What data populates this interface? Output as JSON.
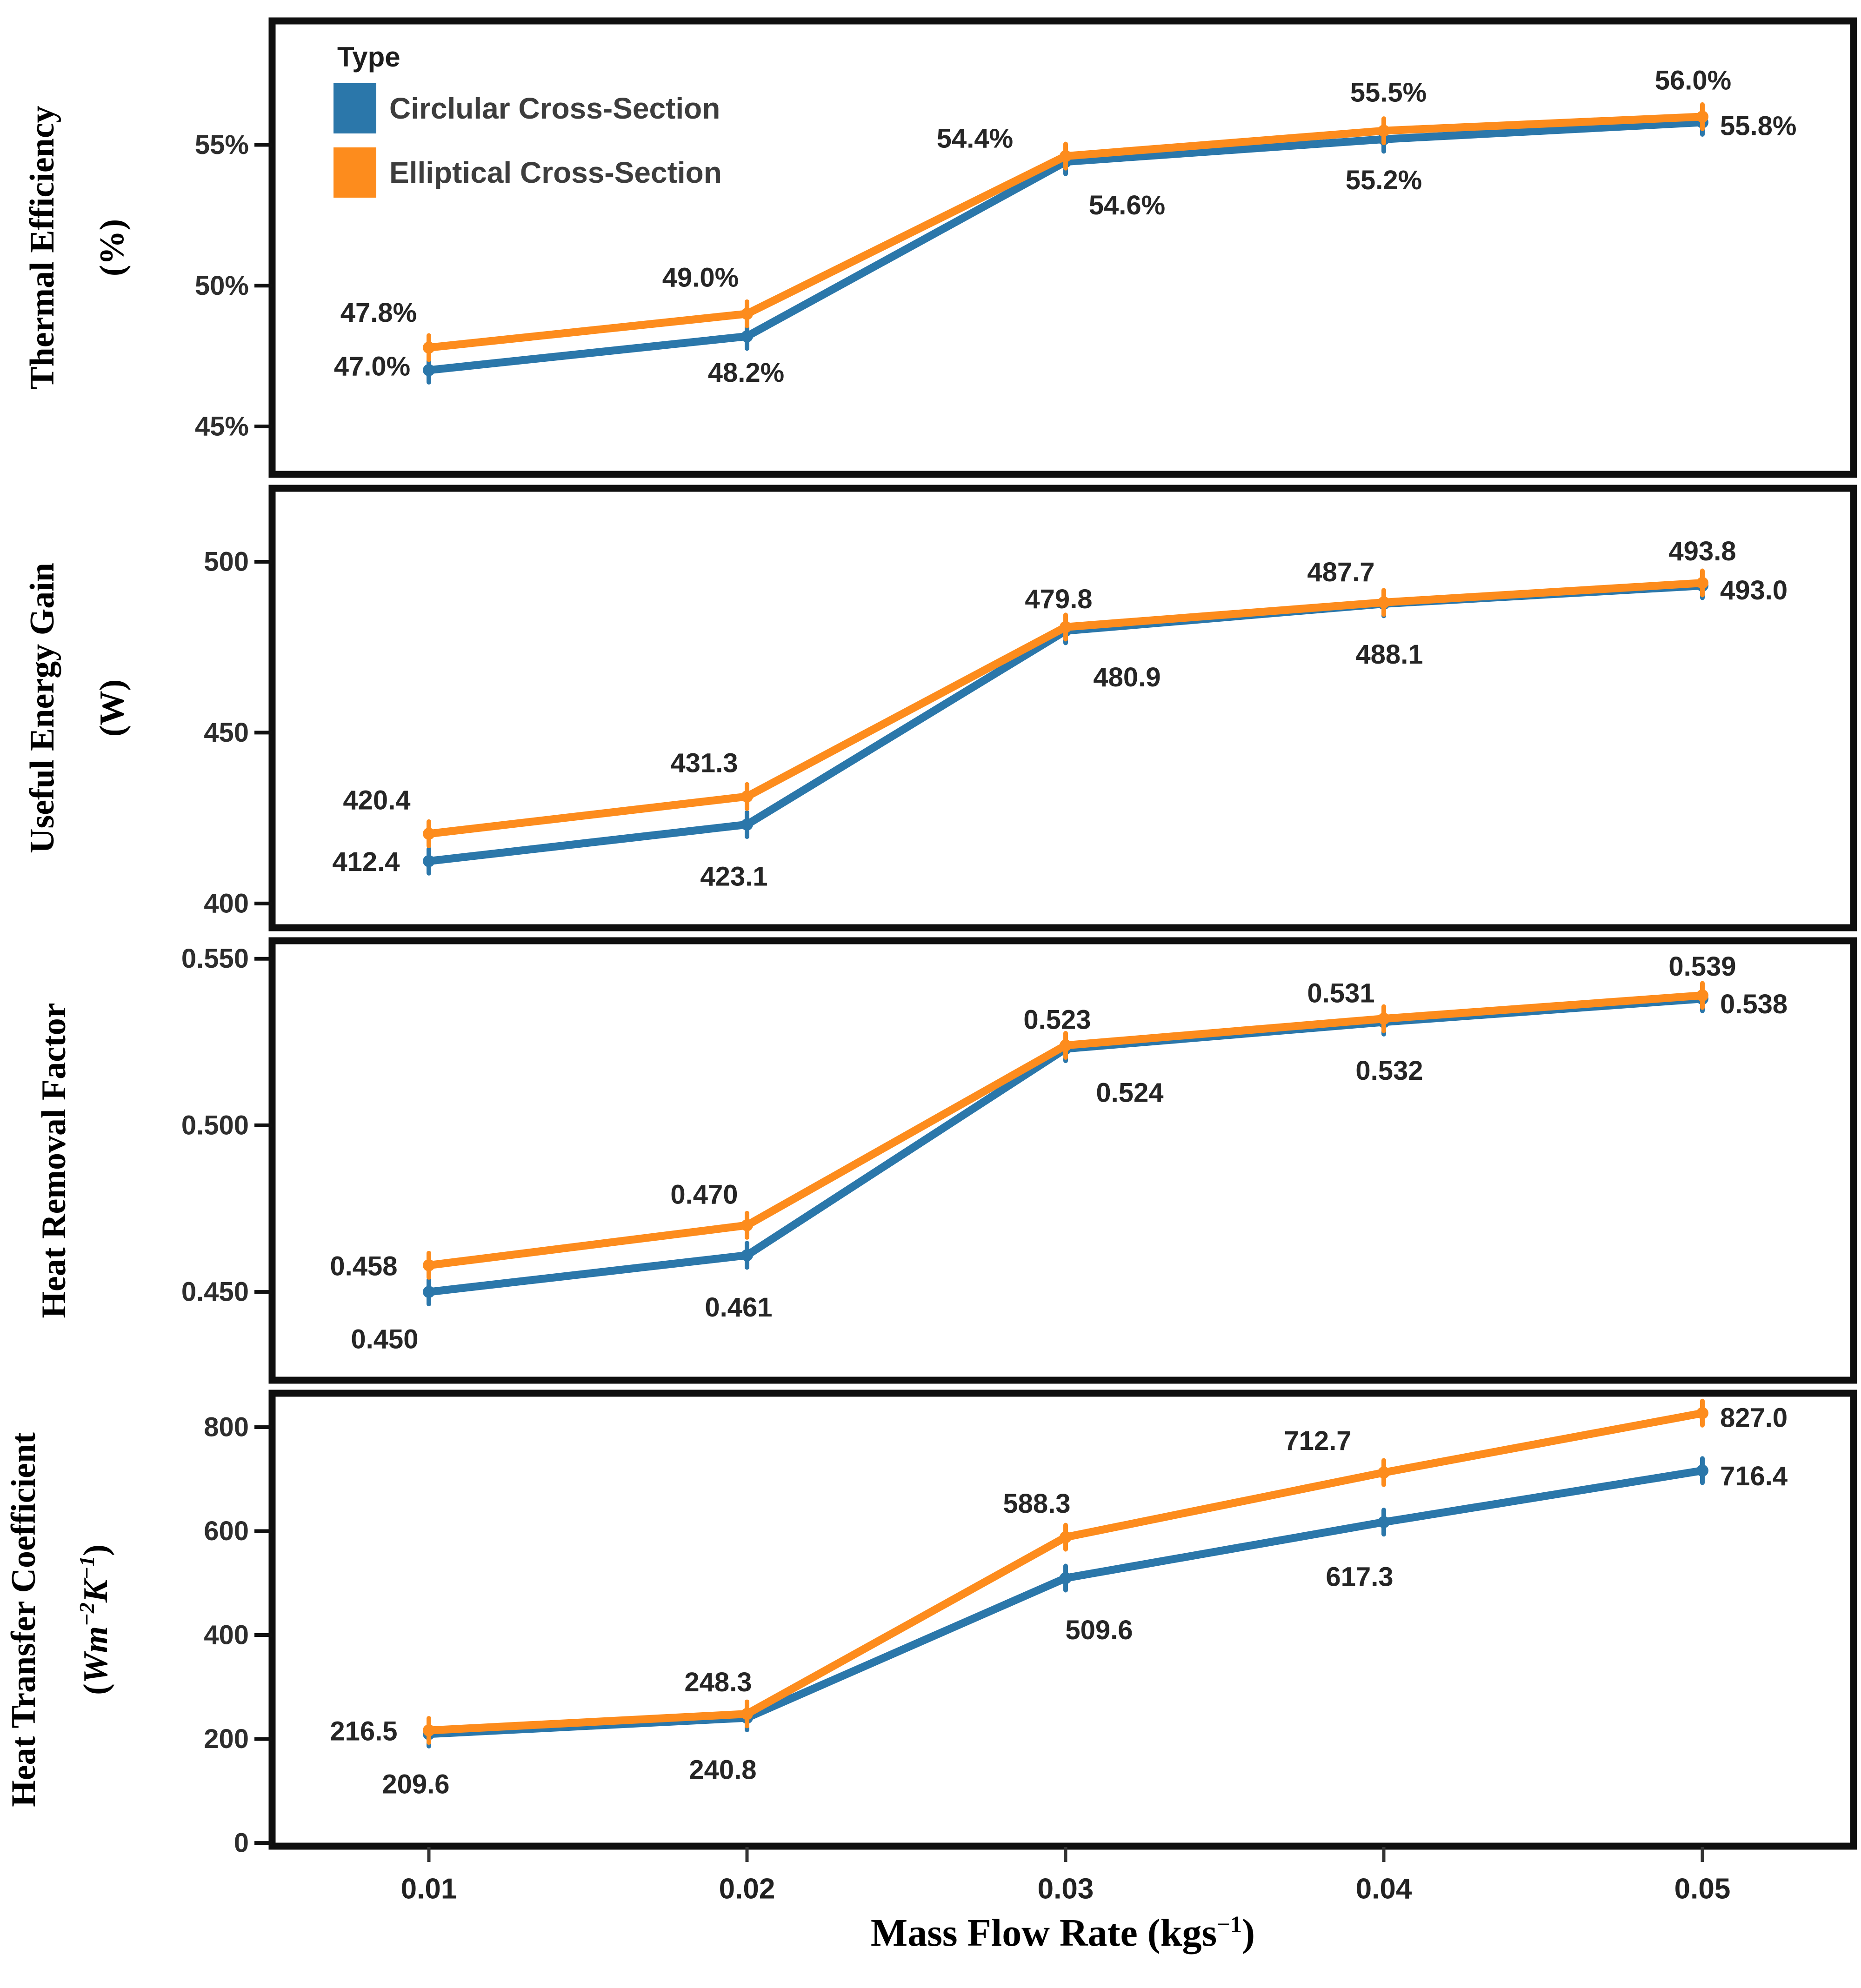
{
  "chart_data": {
    "type": "line",
    "title": "",
    "grid": false,
    "x_axis": {
      "title_segments": [
        {
          "t": "Mass Flow Rate (kgs"
        },
        {
          "t": "−1",
          "sup": true
        },
        {
          "t": ")"
        }
      ],
      "categories": [
        "0.01",
        "0.02",
        "0.03",
        "0.04",
        "0.05"
      ]
    },
    "legend": {
      "title": "Type",
      "position": "top-left-inside",
      "items": [
        {
          "key": "circular",
          "label": "Circlular Cross-Section",
          "color": "#2b77aa"
        },
        {
          "key": "elliptical",
          "label": "Elliptical Cross-Section",
          "color": "#fd8c1d"
        }
      ]
    },
    "panels": [
      {
        "id": "thermal-efficiency",
        "ylabel": [
          {
            "segments": [
              {
                "t": "Thermal Efficiency"
              }
            ]
          },
          {
            "segments": [
              {
                "t": "(%)"
              }
            ]
          }
        ],
        "ylim": [
          43.3,
          59.4
        ],
        "yticks": [
          {
            "v": 45,
            "label": "45%"
          },
          {
            "v": 50,
            "label": "50%"
          },
          {
            "v": 55,
            "label": "55%"
          }
        ],
        "series": [
          {
            "key": "circular",
            "name": "Circlular Cross-Section",
            "color": "#2b77aa",
            "values": [
              47.0,
              48.2,
              54.4,
              55.2,
              55.8
            ],
            "labels": [
              "47.0%",
              "48.2%",
              "54.4%",
              "55.2%",
              "55.8%"
            ],
            "label_offsets": [
              [
                -122,
                -8,
                "middle"
              ],
              [
                -2,
                78,
                "middle"
              ],
              [
                -195,
                -50,
                "middle"
              ],
              [
                0,
                88,
                "middle"
              ],
              [
                38,
                8,
                "start"
              ]
            ]
          },
          {
            "key": "elliptical",
            "name": "Elliptical Cross-Section",
            "color": "#fd8c1d",
            "values": [
              47.8,
              49.0,
              54.6,
              55.5,
              56.0
            ],
            "labels": [
              "47.8%",
              "49.0%",
              "54.6%",
              "55.5%",
              "56.0%"
            ],
            "label_offsets": [
              [
                -108,
                -75,
                "middle"
              ],
              [
                -100,
                -78,
                "middle"
              ],
              [
                132,
                106,
                "middle"
              ],
              [
                10,
                -82,
                "middle"
              ],
              [
                -20,
                -78,
                "middle"
              ]
            ]
          }
        ]
      },
      {
        "id": "useful-energy-gain",
        "ylabel": [
          {
            "segments": [
              {
                "t": "Useful Energy Gain"
              }
            ]
          },
          {
            "segments": [
              {
                "t": "(W)"
              }
            ]
          }
        ],
        "ylim": [
          392.9,
          521.5
        ],
        "yticks": [
          {
            "v": 400,
            "label": "400"
          },
          {
            "v": 450,
            "label": "450"
          },
          {
            "v": 500,
            "label": "500"
          }
        ],
        "series": [
          {
            "key": "circular",
            "name": "Circlular Cross-Section",
            "color": "#2b77aa",
            "values": [
              412.4,
              423.1,
              479.8,
              487.7,
              493.0
            ],
            "labels": [
              "412.4",
              "423.1",
              "479.8",
              "487.7",
              "493.0"
            ],
            "label_offsets": [
              [
                -135,
                2,
                "middle"
              ],
              [
                -28,
                112,
                "middle"
              ],
              [
                -15,
                -68,
                "middle"
              ],
              [
                -92,
                -68,
                "middle"
              ],
              [
                38,
                10,
                "start"
              ]
            ]
          },
          {
            "key": "elliptical",
            "name": "Elliptical Cross-Section",
            "color": "#fd8c1d",
            "values": [
              420.4,
              431.3,
              480.9,
              488.1,
              493.8
            ],
            "labels": [
              "420.4",
              "431.3",
              "480.9",
              "488.1",
              "493.8"
            ],
            "label_offsets": [
              [
                -112,
                -72,
                "middle"
              ],
              [
                -92,
                -72,
                "middle"
              ],
              [
                132,
                108,
                "middle"
              ],
              [
                12,
                112,
                "middle"
              ],
              [
                0,
                -68,
                "middle"
              ]
            ]
          }
        ]
      },
      {
        "id": "heat-removal-factor",
        "ylabel": [
          {
            "segments": [
              {
                "t": "Heat Removal Factor"
              }
            ]
          }
        ],
        "ylim": [
          0.4235,
          0.5554
        ],
        "yticks": [
          {
            "v": 0.45,
            "label": "0.450"
          },
          {
            "v": 0.5,
            "label": "0.500"
          },
          {
            "v": 0.55,
            "label": "0.550"
          }
        ],
        "series": [
          {
            "key": "circular",
            "name": "Circlular Cross-Section",
            "color": "#2b77aa",
            "values": [
              0.45,
              0.461,
              0.523,
              0.531,
              0.538
            ],
            "labels": [
              "0.450",
              "0.461",
              "0.523",
              "0.531",
              "0.538"
            ],
            "label_offsets": [
              [
                -95,
                102,
                "middle"
              ],
              [
                -18,
                112,
                "middle"
              ],
              [
                -18,
                -62,
                "middle"
              ],
              [
                -92,
                -62,
                "middle"
              ],
              [
                38,
                12,
                "start"
              ]
            ]
          },
          {
            "key": "elliptical",
            "name": "Elliptical Cross-Section",
            "color": "#fd8c1d",
            "values": [
              0.458,
              0.47,
              0.524,
              0.532,
              0.539
            ],
            "labels": [
              "0.458",
              "0.470",
              "0.524",
              "0.532",
              "0.539"
            ],
            "label_offsets": [
              [
                -140,
                2,
                "middle"
              ],
              [
                -92,
                -66,
                "middle"
              ],
              [
                138,
                102,
                "middle"
              ],
              [
                12,
                112,
                "middle"
              ],
              [
                0,
                -62,
                "middle"
              ]
            ]
          }
        ]
      },
      {
        "id": "heat-transfer-coefficient",
        "ylabel": [
          {
            "segments": [
              {
                "t": "Heat Transfer Coefficient"
              }
            ]
          },
          {
            "segments": [
              {
                "t": "("
              },
              {
                "t": "Wm",
                "italic": true
              },
              {
                "t": "−2",
                "sup": true,
                "italic": true
              },
              {
                "t": "K",
                "italic": true
              },
              {
                "t": "−1",
                "sup": true,
                "italic": true
              },
              {
                "t": ")"
              }
            ]
          }
        ],
        "ylim": [
          -6.2,
          865.3
        ],
        "yticks": [
          {
            "v": 0,
            "label": "0"
          },
          {
            "v": 200,
            "label": "200"
          },
          {
            "v": 400,
            "label": "400"
          },
          {
            "v": 600,
            "label": "600"
          },
          {
            "v": 800,
            "label": "800"
          }
        ],
        "series": [
          {
            "key": "circular",
            "name": "Circlular Cross-Section",
            "color": "#2b77aa",
            "values": [
              209.6,
              240.8,
              509.6,
              617.3,
              716.4
            ],
            "labels": [
              "209.6",
              "240.8",
              "509.6",
              "617.3",
              "716.4"
            ],
            "label_offsets": [
              [
                -28,
                108,
                "middle"
              ],
              [
                -52,
                112,
                "middle"
              ],
              [
                72,
                112,
                "middle"
              ],
              [
                -52,
                118,
                "middle"
              ],
              [
                38,
                12,
                "start"
              ]
            ]
          },
          {
            "key": "elliptical",
            "name": "Elliptical Cross-Section",
            "color": "#fd8c1d",
            "values": [
              216.5,
              248.3,
              588.3,
              712.7,
              827.0
            ],
            "labels": [
              "216.5",
              "248.3",
              "588.3",
              "712.7",
              "827.0"
            ],
            "label_offsets": [
              [
                -140,
                2,
                "middle"
              ],
              [
                -62,
                -68,
                "middle"
              ],
              [
                -62,
                -72,
                "middle"
              ],
              [
                -142,
                -68,
                "middle"
              ],
              [
                38,
                10,
                "start"
              ]
            ]
          }
        ]
      }
    ],
    "style": {
      "border_color": "#0f0f0f",
      "tick_color": "#111111",
      "background": "#ffffff"
    }
  }
}
